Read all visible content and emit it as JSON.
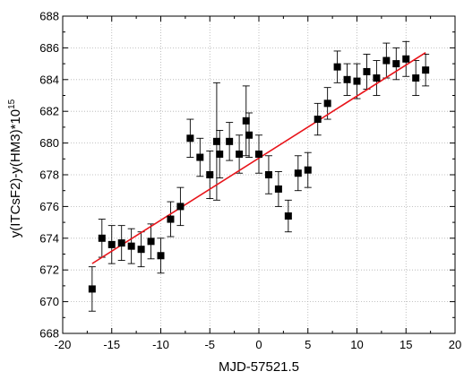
{
  "chart_data": {
    "type": "scatter",
    "title": "",
    "xlabel": "MJD-57521.5",
    "ylabel_main": "y(ITCsF2)-y(HM3)*10",
    "ylabel_exp": "15",
    "xlim": [
      -20,
      20
    ],
    "ylim": [
      668,
      688
    ],
    "xticks": [
      -20,
      -15,
      -10,
      -5,
      0,
      5,
      10,
      15,
      20
    ],
    "yticks": [
      668,
      670,
      672,
      674,
      676,
      678,
      680,
      682,
      684,
      686,
      688
    ],
    "xtick_labels": [
      "-20",
      "-15",
      "-10",
      "-5",
      "0",
      "5",
      "10",
      "15",
      "20"
    ],
    "ytick_labels": [
      "668",
      "670",
      "672",
      "674",
      "676",
      "678",
      "680",
      "682",
      "684",
      "686",
      "688"
    ],
    "grid": true,
    "colors": {
      "points": "#000000",
      "fit": "#e8141a",
      "grid": "#b0b0b0"
    },
    "series": [
      {
        "x": [
          -17,
          -16,
          -15,
          -14,
          -13,
          -12,
          -11,
          -10,
          -9,
          -8,
          -7,
          -6,
          -5,
          -4.3,
          -4,
          -3,
          -2,
          -1.3,
          -1,
          0,
          1,
          2,
          3,
          4,
          5,
          6,
          7,
          8,
          9,
          10,
          11,
          12,
          13,
          14,
          15,
          16,
          17
        ],
        "y": [
          670.8,
          674.0,
          673.6,
          673.7,
          673.5,
          673.3,
          673.8,
          672.9,
          675.2,
          676.0,
          680.3,
          679.1,
          678.0,
          680.1,
          679.3,
          680.1,
          679.3,
          681.4,
          680.5,
          679.3,
          678.0,
          677.1,
          675.4,
          678.1,
          678.3,
          681.5,
          682.5,
          684.8,
          684.0,
          683.9,
          684.5,
          684.1,
          685.2,
          685.0,
          685.3,
          684.1,
          684.6
        ],
        "yerr": [
          1.4,
          1.2,
          1.2,
          1.1,
          1.1,
          1.1,
          1.1,
          1.1,
          1.1,
          1.2,
          1.2,
          1.2,
          1.5,
          3.7,
          1.5,
          1.2,
          1.2,
          2.2,
          1.4,
          1.2,
          1.2,
          1.1,
          1.0,
          1.1,
          1.1,
          1.0,
          1.0,
          1.0,
          1.0,
          1.1,
          1.1,
          1.1,
          1.1,
          1.0,
          1.1,
          1.1,
          1.0
        ]
      }
    ],
    "fit_line": {
      "x": [
        -17,
        17
      ],
      "y": [
        672.4,
        685.7
      ]
    }
  }
}
